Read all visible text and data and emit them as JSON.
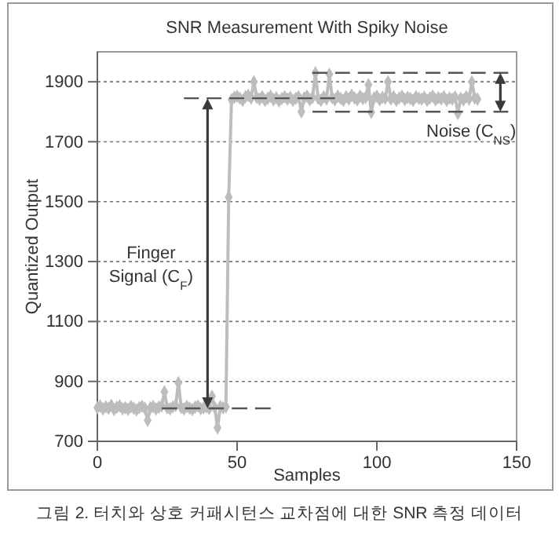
{
  "chart_data": {
    "type": "line",
    "title": "SNR Measurement With Spiky Noise",
    "xlabel": "Samples",
    "ylabel": "Quantized Output",
    "xlim": [
      0,
      150
    ],
    "xticks": [
      0,
      50,
      100,
      150
    ],
    "ylim": [
      700,
      2000
    ],
    "yticks": [
      700,
      900,
      1100,
      1300,
      1500,
      1700,
      1900
    ],
    "grid": "y",
    "series": [
      {
        "color": "#bdbdbd",
        "marker": "diamond",
        "line_style": "solid",
        "x": [
          0,
          1,
          2,
          3,
          4,
          5,
          6,
          7,
          8,
          9,
          10,
          11,
          12,
          13,
          14,
          15,
          16,
          17,
          18,
          19,
          20,
          21,
          22,
          23,
          24,
          25,
          26,
          27,
          28,
          29,
          30,
          31,
          32,
          33,
          34,
          35,
          36,
          37,
          38,
          39,
          40,
          41,
          42,
          43,
          44,
          45,
          46,
          47,
          48,
          49,
          50,
          51,
          52,
          53,
          54,
          55,
          56,
          57,
          58,
          59,
          60,
          61,
          62,
          63,
          64,
          65,
          66,
          67,
          68,
          69,
          70,
          71,
          72,
          73,
          74,
          75,
          76,
          77,
          78,
          79,
          80,
          81,
          82,
          83,
          84,
          85,
          86,
          87,
          88,
          89,
          90,
          91,
          92,
          93,
          94,
          95,
          96,
          97,
          98,
          99,
          100,
          101,
          102,
          103,
          104,
          105,
          106,
          107,
          108,
          109,
          110,
          111,
          112,
          113,
          114,
          115,
          116,
          117,
          118,
          119,
          120,
          121,
          122,
          123,
          124,
          125,
          126,
          127,
          128,
          129,
          130,
          131,
          132,
          133,
          134,
          135,
          136
        ],
        "values": [
          812,
          818,
          808,
          815,
          810,
          820,
          806,
          814,
          818,
          809,
          812,
          807,
          816,
          811,
          805,
          813,
          817,
          810,
          770,
          812,
          816,
          808,
          814,
          818,
          865,
          812,
          809,
          815,
          820,
          895,
          813,
          808,
          816,
          811,
          806,
          814,
          818,
          809,
          812,
          815,
          810,
          850,
          813,
          745,
          816,
          812,
          815,
          1515,
          1840,
          1848,
          1852,
          1845,
          1838,
          1850,
          1855,
          1846,
          1900,
          1848,
          1842,
          1850,
          1838,
          1845,
          1852,
          1840,
          1847,
          1836,
          1844,
          1850,
          1842,
          1848,
          1838,
          1845,
          1850,
          1800,
          1846,
          1852,
          1840,
          1848,
          1930,
          1845,
          1838,
          1850,
          1843,
          1925,
          1847,
          1840,
          1852,
          1845,
          1838,
          1850,
          1843,
          1855,
          1846,
          1840,
          1852,
          1844,
          1848,
          1890,
          1798,
          1846,
          1852,
          1840,
          1848,
          1845,
          1900,
          1843,
          1850,
          1838,
          1846,
          1852,
          1841,
          1848,
          1844,
          1838,
          1850,
          1845,
          1842,
          1849,
          1838,
          1846,
          1852,
          1840,
          1847,
          1843,
          1850,
          1838,
          1846,
          1842,
          1849,
          1795,
          1845,
          1840,
          1850,
          1843,
          1900,
          1846,
          1842
        ]
      },
      {
        "color": "#555555",
        "marker": "none",
        "line_style": "dashed",
        "x": [
          23,
          62
        ],
        "values": [
          810,
          810
        ]
      },
      {
        "color": "#555555",
        "marker": "none",
        "line_style": "dashed",
        "x": [
          31,
          85
        ],
        "values": [
          1845,
          1845
        ]
      },
      {
        "color": "#555555",
        "marker": "none",
        "line_style": "dashed",
        "x": [
          77,
          147
        ],
        "values": [
          1930,
          1930
        ]
      },
      {
        "color": "#555555",
        "marker": "none",
        "line_style": "dashed",
        "x": [
          77,
          147
        ],
        "values": [
          1800,
          1800
        ]
      }
    ],
    "annotations": [
      "Finger Signal (C$_{F}$)",
      "Noise (C$_{NS}$)",
      "그림 2. 터치와 상호 커패시턴스 교차점에 대한 SNR 측정 데이터"
    ]
  }
}
